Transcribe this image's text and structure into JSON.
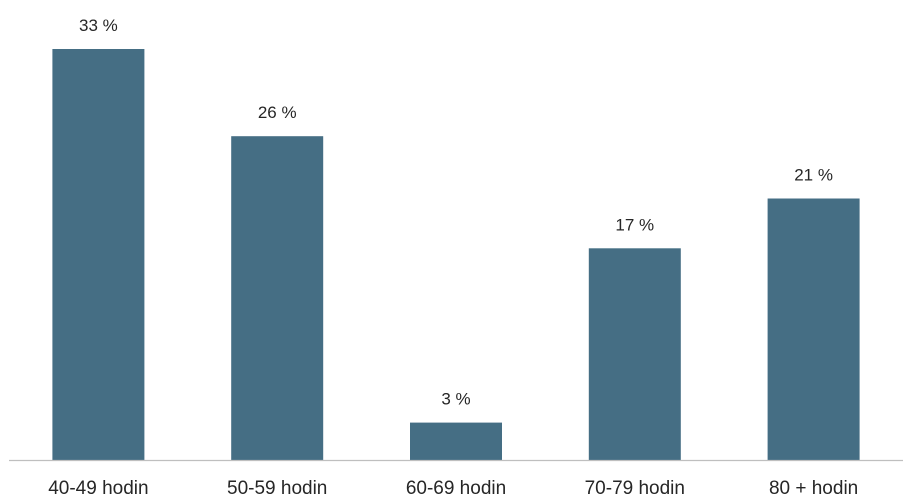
{
  "chart_data": {
    "type": "bar",
    "categories": [
      "40-49 hodin",
      "50-59 hodin",
      "60-69 hodin",
      "70-79 hodin",
      "80 + hodin"
    ],
    "values": [
      33,
      26,
      3,
      17,
      21
    ],
    "data_labels": [
      "33 %",
      "26 %",
      "3 %",
      "17 %",
      "21 %"
    ],
    "title": "",
    "xlabel": "",
    "ylabel": "",
    "ylim": [
      0,
      33
    ],
    "grid": false,
    "legend": "none",
    "bar_color": "#456e84",
    "axis_color": "#bfbfbf"
  }
}
